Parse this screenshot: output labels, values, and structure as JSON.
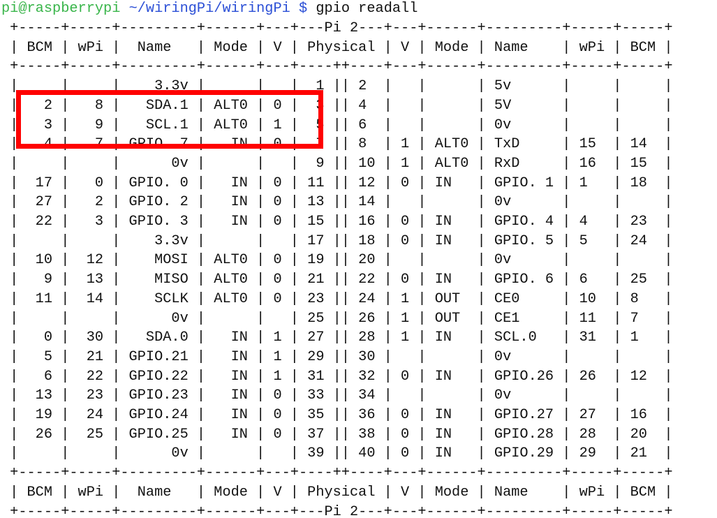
{
  "terminal": {
    "prompt_user": "pi@raspberrypi",
    "prompt_path": "~/wiringPi/wiringPi $",
    "command": "gpio readall",
    "highlight_color": "#ff0000",
    "text_color": "#111111",
    "user_color": "#39b54a",
    "path_color": "#2b4fd6"
  },
  "table": {
    "lines": [
      " +-----+-----+---------+------+---+---Pi 2---+---+------+---------+-----+-----+",
      " | BCM | wPi |  Name   | Mode | V | Physical | V | Mode | Name    | wPi | BCM |",
      " +-----+-----+---------+------+---+----++----+---+------+---------+-----+-----+",
      " |     |     |    3.3v |      |   |  1 || 2  |   |      | 5v      |     |     |",
      " |   2 |   8 |   SDA.1 | ALT0 | 0 |  3 || 4  |   |      | 5V      |     |     |",
      " |   3 |   9 |   SCL.1 | ALT0 | 1 |  5 || 6  |   |      | 0v      |     |     |",
      " |   4 |   7 | GPIO. 7 |   IN | 0 |  7 || 8  | 1 | ALT0 | TxD     | 15  | 14  |",
      " |     |     |      0v |      |   |  9 || 10 | 1 | ALT0 | RxD     | 16  | 15  |",
      " |  17 |   0 | GPIO. 0 |   IN | 0 | 11 || 12 | 0 | IN   | GPIO. 1 | 1   | 18  |",
      " |  27 |   2 | GPIO. 2 |   IN | 0 | 13 || 14 |   |      | 0v      |     |     |",
      " |  22 |   3 | GPIO. 3 |   IN | 0 | 15 || 16 | 0 | IN   | GPIO. 4 | 4   | 23  |",
      " |     |     |    3.3v |      |   | 17 || 18 | 0 | IN   | GPIO. 5 | 5   | 24  |",
      " |  10 |  12 |    MOSI | ALT0 | 0 | 19 || 20 |   |      | 0v      |     |     |",
      " |   9 |  13 |    MISO | ALT0 | 0 | 21 || 22 | 0 | IN   | GPIO. 6 | 6   | 25  |",
      " |  11 |  14 |    SCLK | ALT0 | 0 | 23 || 24 | 1 | OUT  | CE0     | 10  | 8   |",
      " |     |     |      0v |      |   | 25 || 26 | 1 | OUT  | CE1     | 11  | 7   |",
      " |   0 |  30 |   SDA.0 |   IN | 1 | 27 || 28 | 1 | IN   | SCL.0   | 31  | 1   |",
      " |   5 |  21 | GPIO.21 |   IN | 1 | 29 || 30 |   |      | 0v      |     |     |",
      " |   6 |  22 | GPIO.22 |   IN | 1 | 31 || 32 | 0 | IN   | GPIO.26 | 26  | 12  |",
      " |  13 |  23 | GPIO.23 |   IN | 0 | 33 || 34 |   |      | 0v      |     |     |",
      " |  19 |  24 | GPIO.24 |   IN | 0 | 35 || 36 | 0 | IN   | GPIO.27 | 27  | 16  |",
      " |  26 |  25 | GPIO.25 |   IN | 0 | 37 || 38 | 0 | IN   | GPIO.28 | 28  | 20  |",
      " |     |     |      0v |      |   | 39 || 40 | 0 | IN   | GPIO.29 | 29  | 21  |",
      " +-----+-----+---------+------+---+----++----+---+------+---------+-----+-----+",
      " | BCM | wPi |  Name   | Mode | V | Physical | V | Mode | Name    | wPi | BCM |",
      " +-----+-----+---------+------+---+---Pi 2---+---+------+---------+-----+-----+"
    ]
  }
}
